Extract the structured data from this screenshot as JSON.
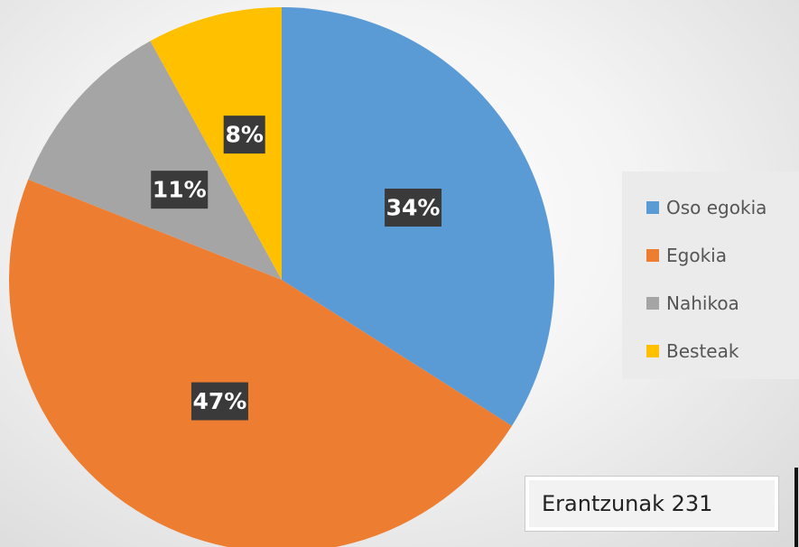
{
  "chart_data": {
    "type": "pie",
    "title": "",
    "start_angle_deg": 0,
    "direction": "clockwise",
    "slices": [
      {
        "label": "Oso egokia",
        "value": 34,
        "value_label": "34%",
        "color": "#5b9bd5"
      },
      {
        "label": "Egokia",
        "value": 47,
        "value_label": "47%",
        "color": "#ed7d31"
      },
      {
        "label": "Nahikoa",
        "value": 11,
        "value_label": "11%",
        "color": "#a5a5a5"
      },
      {
        "label": "Besteak",
        "value": 8,
        "value_label": "8%",
        "color": "#ffc000"
      }
    ],
    "legend_position": "right"
  },
  "note": {
    "text": "Erantzunak 231"
  }
}
